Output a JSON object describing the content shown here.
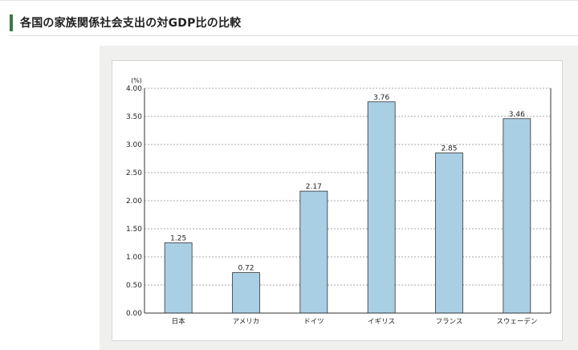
{
  "header": {
    "title": "各国の家族関係社会支出の対GDP比の比較",
    "accent_color": "#3a7a45"
  },
  "chart_data": {
    "type": "bar",
    "title": "",
    "xlabel": "",
    "ylabel": "(%)",
    "ylim": [
      0,
      4.0
    ],
    "yticks": [
      "0.00",
      "0.50",
      "1.00",
      "1.50",
      "2.00",
      "2.50",
      "3.00",
      "3.50",
      "4.00"
    ],
    "categories": [
      "日本",
      "アメリカ",
      "ドイツ",
      "イギリス",
      "フランス",
      "スウェーデン"
    ],
    "values": [
      1.25,
      0.72,
      2.17,
      3.76,
      2.85,
      3.46
    ],
    "value_labels": [
      "1.25",
      "0.72",
      "2.17",
      "3.76",
      "2.85",
      "3.46"
    ],
    "grid": true,
    "bar_color": "#a9cfe4",
    "bar_edge_color": "#333333"
  }
}
